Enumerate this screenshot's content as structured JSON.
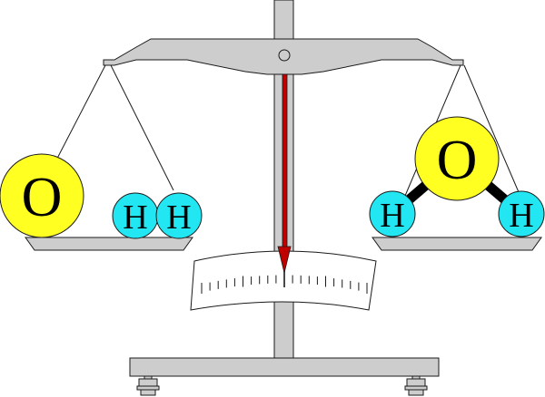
{
  "colors": {
    "oxygen": "#ffff22",
    "hydrogen": "#22e6f2",
    "metal": "#cdcdcd",
    "outline": "#1a1a1a",
    "needle": "#c00000"
  },
  "left_pan": {
    "oxygen_label": "O",
    "hydrogen_labels": [
      "H",
      "H"
    ]
  },
  "right_pan": {
    "oxygen_label": "O",
    "hydrogen_labels": [
      "H",
      "H"
    ]
  },
  "scale": {
    "pointer_reading": "center",
    "minor_ticks_per_side": 10
  }
}
